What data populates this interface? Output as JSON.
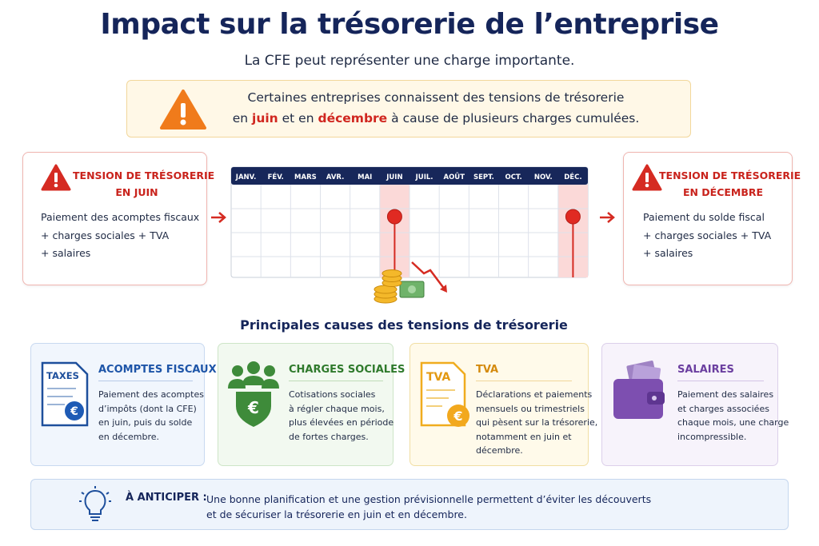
{
  "header": {
    "title": "Impact sur la trésorerie de l’entreprise",
    "subtitle": "La CFE peut représenter une charge importante."
  },
  "alert": {
    "line1": "Certaines entreprises connaissent des tensions de trésorerie",
    "line2": [
      "en",
      "juin",
      "et en",
      "décembre",
      "à cause de plusieurs charges cumulées."
    ]
  },
  "left_panel": {
    "title": [
      "TENSION DE TRÉSORERIE",
      "EN JUIN"
    ],
    "body": [
      "Paiement des acomptes fiscaux",
      "+ charges sociales + TVA",
      "+ salaires"
    ]
  },
  "right_panel": {
    "title": [
      "TENSION DE TRÉSORERIE",
      "EN DÉCEMBRE"
    ],
    "body": [
      "Paiement du solde fiscal",
      "+ charges sociales + TVA",
      "+ salaires"
    ]
  },
  "calendar": {
    "months": [
      "JANV.",
      "FÉV.",
      "MARS",
      "AVR.",
      "MAI",
      "JUIN",
      "JUIL.",
      "AOÛT",
      "SEPT.",
      "OCT.",
      "NOV.",
      "DÉC."
    ]
  },
  "section_title": "Principales causes des tensions de trésorerie",
  "cards": [
    {
      "icon_label": "TAXES",
      "icon_symbol": "€",
      "title": "ACOMPTES FISCAUX",
      "body": [
        "Paiement des acomptes",
        "d’impôts (dont la CFE)",
        "en juin, puis du solde",
        "en décembre."
      ]
    },
    {
      "icon_symbol": "€",
      "title": "CHARGES SOCIALES",
      "body": [
        "Cotisations sociales",
        "à régler chaque mois,",
        "plus élevées en période",
        "de fortes charges."
      ]
    },
    {
      "icon_label": "TVA",
      "icon_symbol": "€",
      "title": "TVA",
      "body": [
        "Déclarations et paiements",
        "mensuels ou trimestriels",
        "qui pèsent sur la trésorerie,",
        "notamment en juin et",
        "décembre."
      ]
    },
    {
      "title": "SALAIRES",
      "body": [
        "Paiement des salaires",
        "et charges associées",
        "chaque mois, une charge",
        "incompressible."
      ]
    }
  ],
  "footer": {
    "label": "À ANTICIPER :",
    "text": [
      "Une bonne planification et une gestion prévisionnelle permettent d’éviter les découverts",
      "et de sécuriser la trésorerie en juin et en décembre."
    ]
  }
}
